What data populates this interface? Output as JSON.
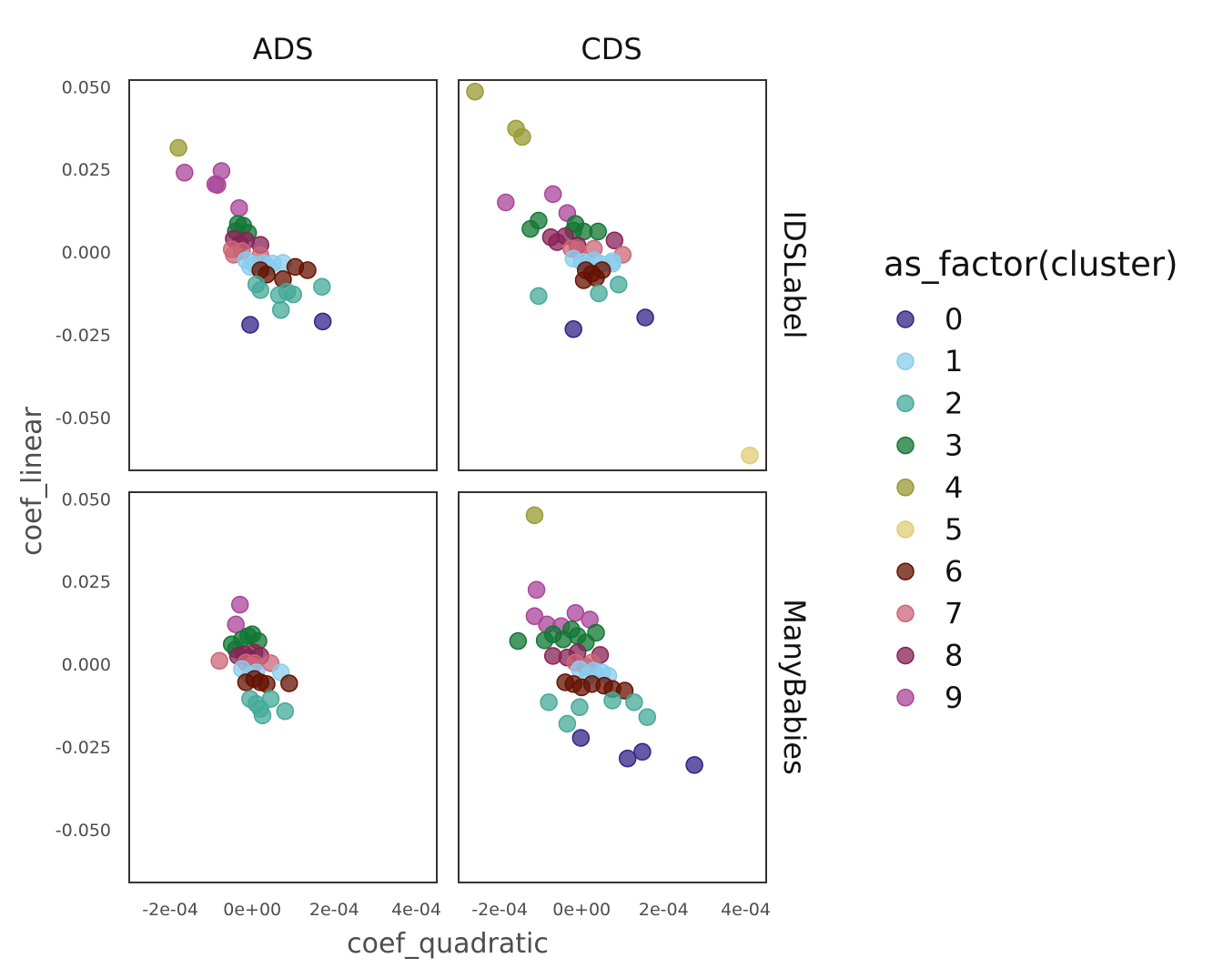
{
  "chart_data": {
    "type": "scatter",
    "xlabel": "coef_quadratic",
    "ylabel": "coef_linear",
    "xlim": [
      -0.0003,
      0.00045
    ],
    "ylim": [
      -0.066,
      0.052
    ],
    "x_ticks": [
      -0.0002,
      0,
      0.0002,
      0.0004
    ],
    "x_tick_labels": [
      "-2e-04",
      "0e+00",
      "2e-04",
      "4e-04"
    ],
    "y_ticks": [
      0.05,
      0.025,
      0,
      -0.025,
      -0.05
    ],
    "y_tick_labels": [
      "0.050",
      "0.025",
      "0.000",
      "-0.025",
      "-0.050"
    ],
    "column_facets": [
      "ADS",
      "CDS"
    ],
    "row_facets": [
      "IDSLabel",
      "ManyBabies"
    ],
    "grid": false,
    "point_opacity": 0.75,
    "legend": {
      "title": "as_factor(cluster)",
      "position": "right",
      "entries": [
        {
          "label": "0",
          "color": "#332288"
        },
        {
          "label": "1",
          "color": "#88CCEE"
        },
        {
          "label": "2",
          "color": "#44AA99"
        },
        {
          "label": "3",
          "color": "#117733"
        },
        {
          "label": "4",
          "color": "#999933"
        },
        {
          "label": "5",
          "color": "#DDCC77"
        },
        {
          "label": "6",
          "color": "#661100"
        },
        {
          "label": "7",
          "color": "#CC6677"
        },
        {
          "label": "8",
          "color": "#882255"
        },
        {
          "label": "9",
          "color": "#AA4499"
        }
      ]
    },
    "panels": [
      {
        "column": "ADS",
        "row": "IDSLabel",
        "points": [
          {
            "x": -0.00018,
            "y": 0.0315,
            "cluster": 4
          },
          {
            "x": -0.000165,
            "y": 0.024,
            "cluster": 9
          },
          {
            "x": -7.5e-05,
            "y": 0.0245,
            "cluster": 9
          },
          {
            "x": -9e-05,
            "y": 0.0205,
            "cluster": 9
          },
          {
            "x": -8.5e-05,
            "y": 0.0203,
            "cluster": 9
          },
          {
            "x": -3.2e-05,
            "y": 0.0133,
            "cluster": 9
          },
          {
            "x": -3.5e-05,
            "y": 0.0085,
            "cluster": 3
          },
          {
            "x": -4e-05,
            "y": 0.0063,
            "cluster": 3
          },
          {
            "x": -2.2e-05,
            "y": 0.008,
            "cluster": 3
          },
          {
            "x": -1e-05,
            "y": 0.0058,
            "cluster": 3
          },
          {
            "x": -4.5e-05,
            "y": 0.004,
            "cluster": 8
          },
          {
            "x": -3e-05,
            "y": 0.0025,
            "cluster": 8
          },
          {
            "x": -1.5e-05,
            "y": 0.0035,
            "cluster": 8
          },
          {
            "x": 2e-05,
            "y": 0.0022,
            "cluster": 8
          },
          {
            "x": -5e-05,
            "y": 0.0008,
            "cluster": 7
          },
          {
            "x": -4.5e-05,
            "y": -0.0008,
            "cluster": 7
          },
          {
            "x": -2.5e-05,
            "y": 0.0003,
            "cluster": 7
          },
          {
            "x": 2e-05,
            "y": -0.001,
            "cluster": 7
          },
          {
            "x": -1.5e-05,
            "y": -0.0025,
            "cluster": 1
          },
          {
            "x": -5e-06,
            "y": -0.0045,
            "cluster": 1
          },
          {
            "x": 5e-06,
            "y": -0.0038,
            "cluster": 1
          },
          {
            "x": 3e-05,
            "y": -0.0035,
            "cluster": 1
          },
          {
            "x": 4e-05,
            "y": -0.0045,
            "cluster": 1
          },
          {
            "x": 5e-05,
            "y": -0.0035,
            "cluster": 1
          },
          {
            "x": 7.5e-05,
            "y": -0.0033,
            "cluster": 1
          },
          {
            "x": 2e-05,
            "y": -0.0055,
            "cluster": 6
          },
          {
            "x": 3.5e-05,
            "y": -0.0068,
            "cluster": 6
          },
          {
            "x": 7.5e-05,
            "y": -0.0082,
            "cluster": 6
          },
          {
            "x": 0.000105,
            "y": -0.0045,
            "cluster": 6
          },
          {
            "x": 0.000135,
            "y": -0.0055,
            "cluster": 6
          },
          {
            "x": 1e-05,
            "y": -0.0098,
            "cluster": 2
          },
          {
            "x": 2e-05,
            "y": -0.0115,
            "cluster": 2
          },
          {
            "x": 6.5e-05,
            "y": -0.013,
            "cluster": 2
          },
          {
            "x": 8.5e-05,
            "y": -0.012,
            "cluster": 2
          },
          {
            "x": 0.0001,
            "y": -0.0128,
            "cluster": 2
          },
          {
            "x": 7e-05,
            "y": -0.0175,
            "cluster": 2
          },
          {
            "x": 0.00017,
            "y": -0.0105,
            "cluster": 2
          },
          {
            "x": -5e-06,
            "y": -0.022,
            "cluster": 0
          },
          {
            "x": 0.000172,
            "y": -0.021,
            "cluster": 0
          }
        ]
      },
      {
        "column": "CDS",
        "row": "IDSLabel",
        "points": [
          {
            "x": -0.00026,
            "y": 0.0485,
            "cluster": 4
          },
          {
            "x": -0.00016,
            "y": 0.0373,
            "cluster": 4
          },
          {
            "x": -0.000145,
            "y": 0.0348,
            "cluster": 4
          },
          {
            "x": 0.00041,
            "y": -0.0615,
            "cluster": 5
          },
          {
            "x": -0.000185,
            "y": 0.015,
            "cluster": 9
          },
          {
            "x": -7e-05,
            "y": 0.0175,
            "cluster": 9
          },
          {
            "x": -3.5e-05,
            "y": 0.0118,
            "cluster": 9
          },
          {
            "x": -0.000125,
            "y": 0.007,
            "cluster": 3
          },
          {
            "x": -0.000105,
            "y": 0.0095,
            "cluster": 3
          },
          {
            "x": -2e-05,
            "y": 0.0065,
            "cluster": 3
          },
          {
            "x": -1.5e-05,
            "y": 0.0085,
            "cluster": 3
          },
          {
            "x": 5e-06,
            "y": 0.0062,
            "cluster": 3
          },
          {
            "x": 4e-05,
            "y": 0.0062,
            "cluster": 3
          },
          {
            "x": -7.5e-05,
            "y": 0.0045,
            "cluster": 8
          },
          {
            "x": -6e-05,
            "y": 0.003,
            "cluster": 8
          },
          {
            "x": -4e-05,
            "y": 0.0048,
            "cluster": 8
          },
          {
            "x": -1e-05,
            "y": 0.002,
            "cluster": 8
          },
          {
            "x": 8e-05,
            "y": 0.0035,
            "cluster": 8
          },
          {
            "x": -2.5e-05,
            "y": 0.001,
            "cluster": 7
          },
          {
            "x": -1e-05,
            "y": 0.0005,
            "cluster": 7
          },
          {
            "x": 3e-05,
            "y": 0.001,
            "cluster": 7
          },
          {
            "x": 0.0001,
            "y": -0.0008,
            "cluster": 7
          },
          {
            "x": -2e-05,
            "y": -0.002,
            "cluster": 1
          },
          {
            "x": 0,
            "y": -0.003,
            "cluster": 1
          },
          {
            "x": 1.5e-05,
            "y": -0.004,
            "cluster": 1
          },
          {
            "x": 3e-05,
            "y": -0.0025,
            "cluster": 1
          },
          {
            "x": 4.5e-05,
            "y": -0.0035,
            "cluster": 1
          },
          {
            "x": 7.5e-05,
            "y": -0.0028,
            "cluster": 1
          },
          {
            "x": 7.5e-05,
            "y": -0.0035,
            "cluster": 1
          },
          {
            "x": 1e-05,
            "y": -0.0055,
            "cluster": 6
          },
          {
            "x": 5e-06,
            "y": -0.0085,
            "cluster": 6
          },
          {
            "x": 2.5e-05,
            "y": -0.0065,
            "cluster": 6
          },
          {
            "x": 3.5e-05,
            "y": -0.0078,
            "cluster": 6
          },
          {
            "x": 5e-05,
            "y": -0.0055,
            "cluster": 6
          },
          {
            "x": -0.000105,
            "y": -0.0133,
            "cluster": 2
          },
          {
            "x": 4.2e-05,
            "y": -0.0125,
            "cluster": 2
          },
          {
            "x": 9e-05,
            "y": -0.0098,
            "cluster": 2
          },
          {
            "x": -2e-05,
            "y": -0.0233,
            "cluster": 0
          },
          {
            "x": 0.000155,
            "y": -0.0198,
            "cluster": 0
          }
        ]
      },
      {
        "column": "ADS",
        "row": "ManyBabies",
        "points": [
          {
            "x": -3e-05,
            "y": 0.018,
            "cluster": 9
          },
          {
            "x": -4e-05,
            "y": 0.012,
            "cluster": 9
          },
          {
            "x": -4e-05,
            "y": 0.0045,
            "cluster": 3
          },
          {
            "x": -5e-05,
            "y": 0.006,
            "cluster": 3
          },
          {
            "x": -2.5e-05,
            "y": 0.0075,
            "cluster": 3
          },
          {
            "x": -1e-05,
            "y": 0.0085,
            "cluster": 3
          },
          {
            "x": 0,
            "y": 0.009,
            "cluster": 3
          },
          {
            "x": 1.5e-05,
            "y": 0.007,
            "cluster": 3
          },
          {
            "x": -3.5e-05,
            "y": 0.0025,
            "cluster": 8
          },
          {
            "x": -2e-05,
            "y": 0.003,
            "cluster": 8
          },
          {
            "x": -1e-05,
            "y": 0.002,
            "cluster": 8
          },
          {
            "x": 5e-06,
            "y": 0.0035,
            "cluster": 8
          },
          {
            "x": 2e-05,
            "y": 0.0025,
            "cluster": 8
          },
          {
            "x": -8e-05,
            "y": 0.001,
            "cluster": 7
          },
          {
            "x": -1.5e-05,
            "y": 0.0005,
            "cluster": 7
          },
          {
            "x": 0,
            "y": -0.0005,
            "cluster": 7
          },
          {
            "x": 5e-06,
            "y": 0.0003,
            "cluster": 7
          },
          {
            "x": 4.5e-05,
            "y": 0.0003,
            "cluster": 7
          },
          {
            "x": -2.5e-05,
            "y": -0.0015,
            "cluster": 1
          },
          {
            "x": -5e-06,
            "y": -0.0035,
            "cluster": 1
          },
          {
            "x": 1e-05,
            "y": -0.0025,
            "cluster": 1
          },
          {
            "x": 7e-05,
            "y": -0.0025,
            "cluster": 1
          },
          {
            "x": -1.5e-05,
            "y": -0.0055,
            "cluster": 6
          },
          {
            "x": 5e-06,
            "y": -0.0045,
            "cluster": 6
          },
          {
            "x": 2e-05,
            "y": -0.0055,
            "cluster": 6
          },
          {
            "x": 3.5e-05,
            "y": -0.006,
            "cluster": 6
          },
          {
            "x": 9e-05,
            "y": -0.0058,
            "cluster": 6
          },
          {
            "x": -5e-06,
            "y": -0.0105,
            "cluster": 2
          },
          {
            "x": 1e-05,
            "y": -0.012,
            "cluster": 2
          },
          {
            "x": 2e-05,
            "y": -0.0135,
            "cluster": 2
          },
          {
            "x": 4.5e-05,
            "y": -0.0105,
            "cluster": 2
          },
          {
            "x": 2.5e-05,
            "y": -0.0155,
            "cluster": 2
          },
          {
            "x": 8e-05,
            "y": -0.0142,
            "cluster": 2
          }
        ]
      },
      {
        "column": "CDS",
        "row": "ManyBabies",
        "points": [
          {
            "x": -0.000115,
            "y": 0.045,
            "cluster": 4
          },
          {
            "x": -0.00011,
            "y": 0.0225,
            "cluster": 9
          },
          {
            "x": -0.000115,
            "y": 0.0145,
            "cluster": 9
          },
          {
            "x": -8.5e-05,
            "y": 0.012,
            "cluster": 9
          },
          {
            "x": -5e-05,
            "y": 0.0115,
            "cluster": 9
          },
          {
            "x": -1.5e-05,
            "y": 0.0155,
            "cluster": 9
          },
          {
            "x": 2e-05,
            "y": 0.0135,
            "cluster": 9
          },
          {
            "x": -0.000155,
            "y": 0.007,
            "cluster": 3
          },
          {
            "x": -9e-05,
            "y": 0.0072,
            "cluster": 3
          },
          {
            "x": -7e-05,
            "y": 0.009,
            "cluster": 3
          },
          {
            "x": -4.5e-05,
            "y": 0.0075,
            "cluster": 3
          },
          {
            "x": -2.5e-05,
            "y": 0.0105,
            "cluster": 3
          },
          {
            "x": -1e-05,
            "y": 0.0085,
            "cluster": 3
          },
          {
            "x": 1e-05,
            "y": 0.0065,
            "cluster": 3
          },
          {
            "x": 3.5e-05,
            "y": 0.0095,
            "cluster": 3
          },
          {
            "x": -7e-05,
            "y": 0.0025,
            "cluster": 8
          },
          {
            "x": -3.5e-05,
            "y": 0.002,
            "cluster": 8
          },
          {
            "x": -1e-05,
            "y": 0.0035,
            "cluster": 8
          },
          {
            "x": 4.5e-05,
            "y": 0.0028,
            "cluster": 8
          },
          {
            "x": -1.5e-05,
            "y": 0.0005,
            "cluster": 7
          },
          {
            "x": 1e-05,
            "y": -0.0008,
            "cluster": 7
          },
          {
            "x": 2.5e-05,
            "y": 0.0005,
            "cluster": 7
          },
          {
            "x": -5e-06,
            "y": -0.0015,
            "cluster": 1
          },
          {
            "x": 1.5e-05,
            "y": -0.0035,
            "cluster": 1
          },
          {
            "x": 3e-05,
            "y": -0.002,
            "cluster": 1
          },
          {
            "x": 5e-05,
            "y": -0.0025,
            "cluster": 1
          },
          {
            "x": 6.5e-05,
            "y": -0.0035,
            "cluster": 1
          },
          {
            "x": -4e-05,
            "y": -0.0055,
            "cluster": 6
          },
          {
            "x": -2e-05,
            "y": -0.006,
            "cluster": 6
          },
          {
            "x": 0,
            "y": -0.007,
            "cluster": 6
          },
          {
            "x": 2.5e-05,
            "y": -0.006,
            "cluster": 6
          },
          {
            "x": 5.5e-05,
            "y": -0.0065,
            "cluster": 6
          },
          {
            "x": 7.5e-05,
            "y": -0.0075,
            "cluster": 6
          },
          {
            "x": 0.000105,
            "y": -0.008,
            "cluster": 6
          },
          {
            "x": -8e-05,
            "y": -0.0115,
            "cluster": 2
          },
          {
            "x": -5e-06,
            "y": -0.013,
            "cluster": 2
          },
          {
            "x": -3.5e-05,
            "y": -0.018,
            "cluster": 2
          },
          {
            "x": 7.5e-05,
            "y": -0.011,
            "cluster": 2
          },
          {
            "x": 0.000128,
            "y": -0.0115,
            "cluster": 2
          },
          {
            "x": 0.00016,
            "y": -0.016,
            "cluster": 2
          },
          {
            "x": -2e-06,
            "y": -0.0223,
            "cluster": 0
          },
          {
            "x": 0.000112,
            "y": -0.0285,
            "cluster": 0
          },
          {
            "x": 0.000148,
            "y": -0.0265,
            "cluster": 0
          },
          {
            "x": 0.000275,
            "y": -0.0305,
            "cluster": 0
          }
        ]
      }
    ]
  }
}
